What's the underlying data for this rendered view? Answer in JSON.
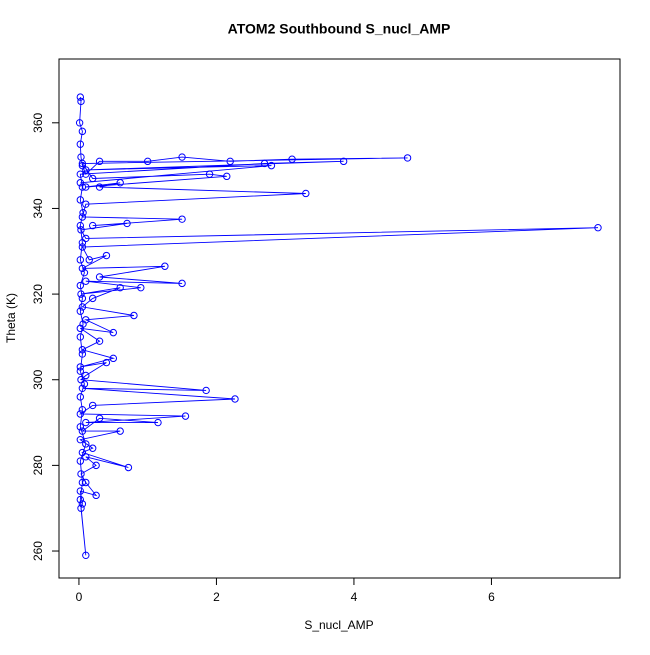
{
  "chart_data": {
    "type": "line-points",
    "title": "ATOM2 Southbound S_nucl_AMP",
    "x_label": "S_nucl_AMP",
    "y_label": "Theta (K)",
    "color": "#0000ff",
    "x": [
      0.02,
      0.03,
      0.01,
      0.05,
      0.02,
      0.03,
      0.05,
      0.1,
      0.3,
      1.0,
      1.5,
      2.2,
      3.1,
      4.78,
      0.05,
      0.2,
      1.9,
      2.15,
      0.1,
      0.6,
      0.3,
      3.3,
      0.1,
      0.05,
      1.5,
      0.2,
      0.7,
      0.03,
      0.1,
      7.55,
      0.05,
      0.15,
      0.4,
      0.05,
      1.25,
      0.3,
      1.5,
      0.1,
      0.9,
      0.03,
      0.6,
      0.2,
      0.05,
      0.8,
      0.1,
      0.5,
      0.02,
      0.3,
      0.05,
      0.5,
      0.02,
      0.4,
      0.1,
      0.03,
      1.85,
      0.05,
      2.27,
      0.2,
      0.02,
      1.55,
      0.1,
      1.15,
      0.3,
      0.05,
      0.6,
      0.02,
      0.2,
      0.05,
      0.72,
      0.1,
      0.25,
      0.03,
      0.1,
      0.25,
      0.02,
      0.05,
      0.03,
      0.1,
      0.02,
      0.05,
      0.02,
      0.1,
      0.02,
      0.05,
      0.02,
      0.08,
      0.02,
      0.05,
      0.02,
      0.06,
      0.02,
      0.05,
      0.02,
      0.08,
      0.02,
      0.05,
      0.02,
      0.06,
      0.02,
      0.05,
      0.02,
      2.7,
      3.85,
      0.1,
      2.8,
      0.02
    ],
    "values": [
      366,
      365,
      360,
      358,
      355,
      352,
      350,
      348,
      351,
      351,
      352,
      351,
      351.5,
      351.8,
      350.5,
      347,
      348,
      347.5,
      345,
      346,
      345,
      343.5,
      341,
      338,
      337.5,
      336,
      336.5,
      335,
      333,
      335.5,
      331,
      328,
      329,
      326,
      326.5,
      324,
      322.5,
      323,
      321.5,
      320,
      321.5,
      319,
      317,
      315,
      314,
      311,
      312,
      309,
      307,
      305,
      303,
      304,
      301,
      300,
      297.5,
      298,
      295.5,
      294,
      292,
      291.5,
      290,
      290,
      291,
      288,
      288,
      286,
      284,
      283,
      279.5,
      282,
      280,
      278,
      276,
      273,
      274,
      271,
      270,
      259,
      272,
      276,
      281,
      285,
      289,
      293,
      296,
      299,
      302,
      306,
      310,
      313,
      316,
      319,
      322,
      325,
      328,
      332,
      336,
      339,
      342,
      345,
      348,
      350.5,
      351,
      349,
      350,
      346
    ],
    "xlim": [
      -0.29,
      7.87
    ],
    "xticks": [
      0,
      2,
      4,
      6
    ],
    "ylim": [
      253.7,
      374.9
    ],
    "yticks": [
      260,
      280,
      300,
      320,
      340,
      360
    ]
  }
}
